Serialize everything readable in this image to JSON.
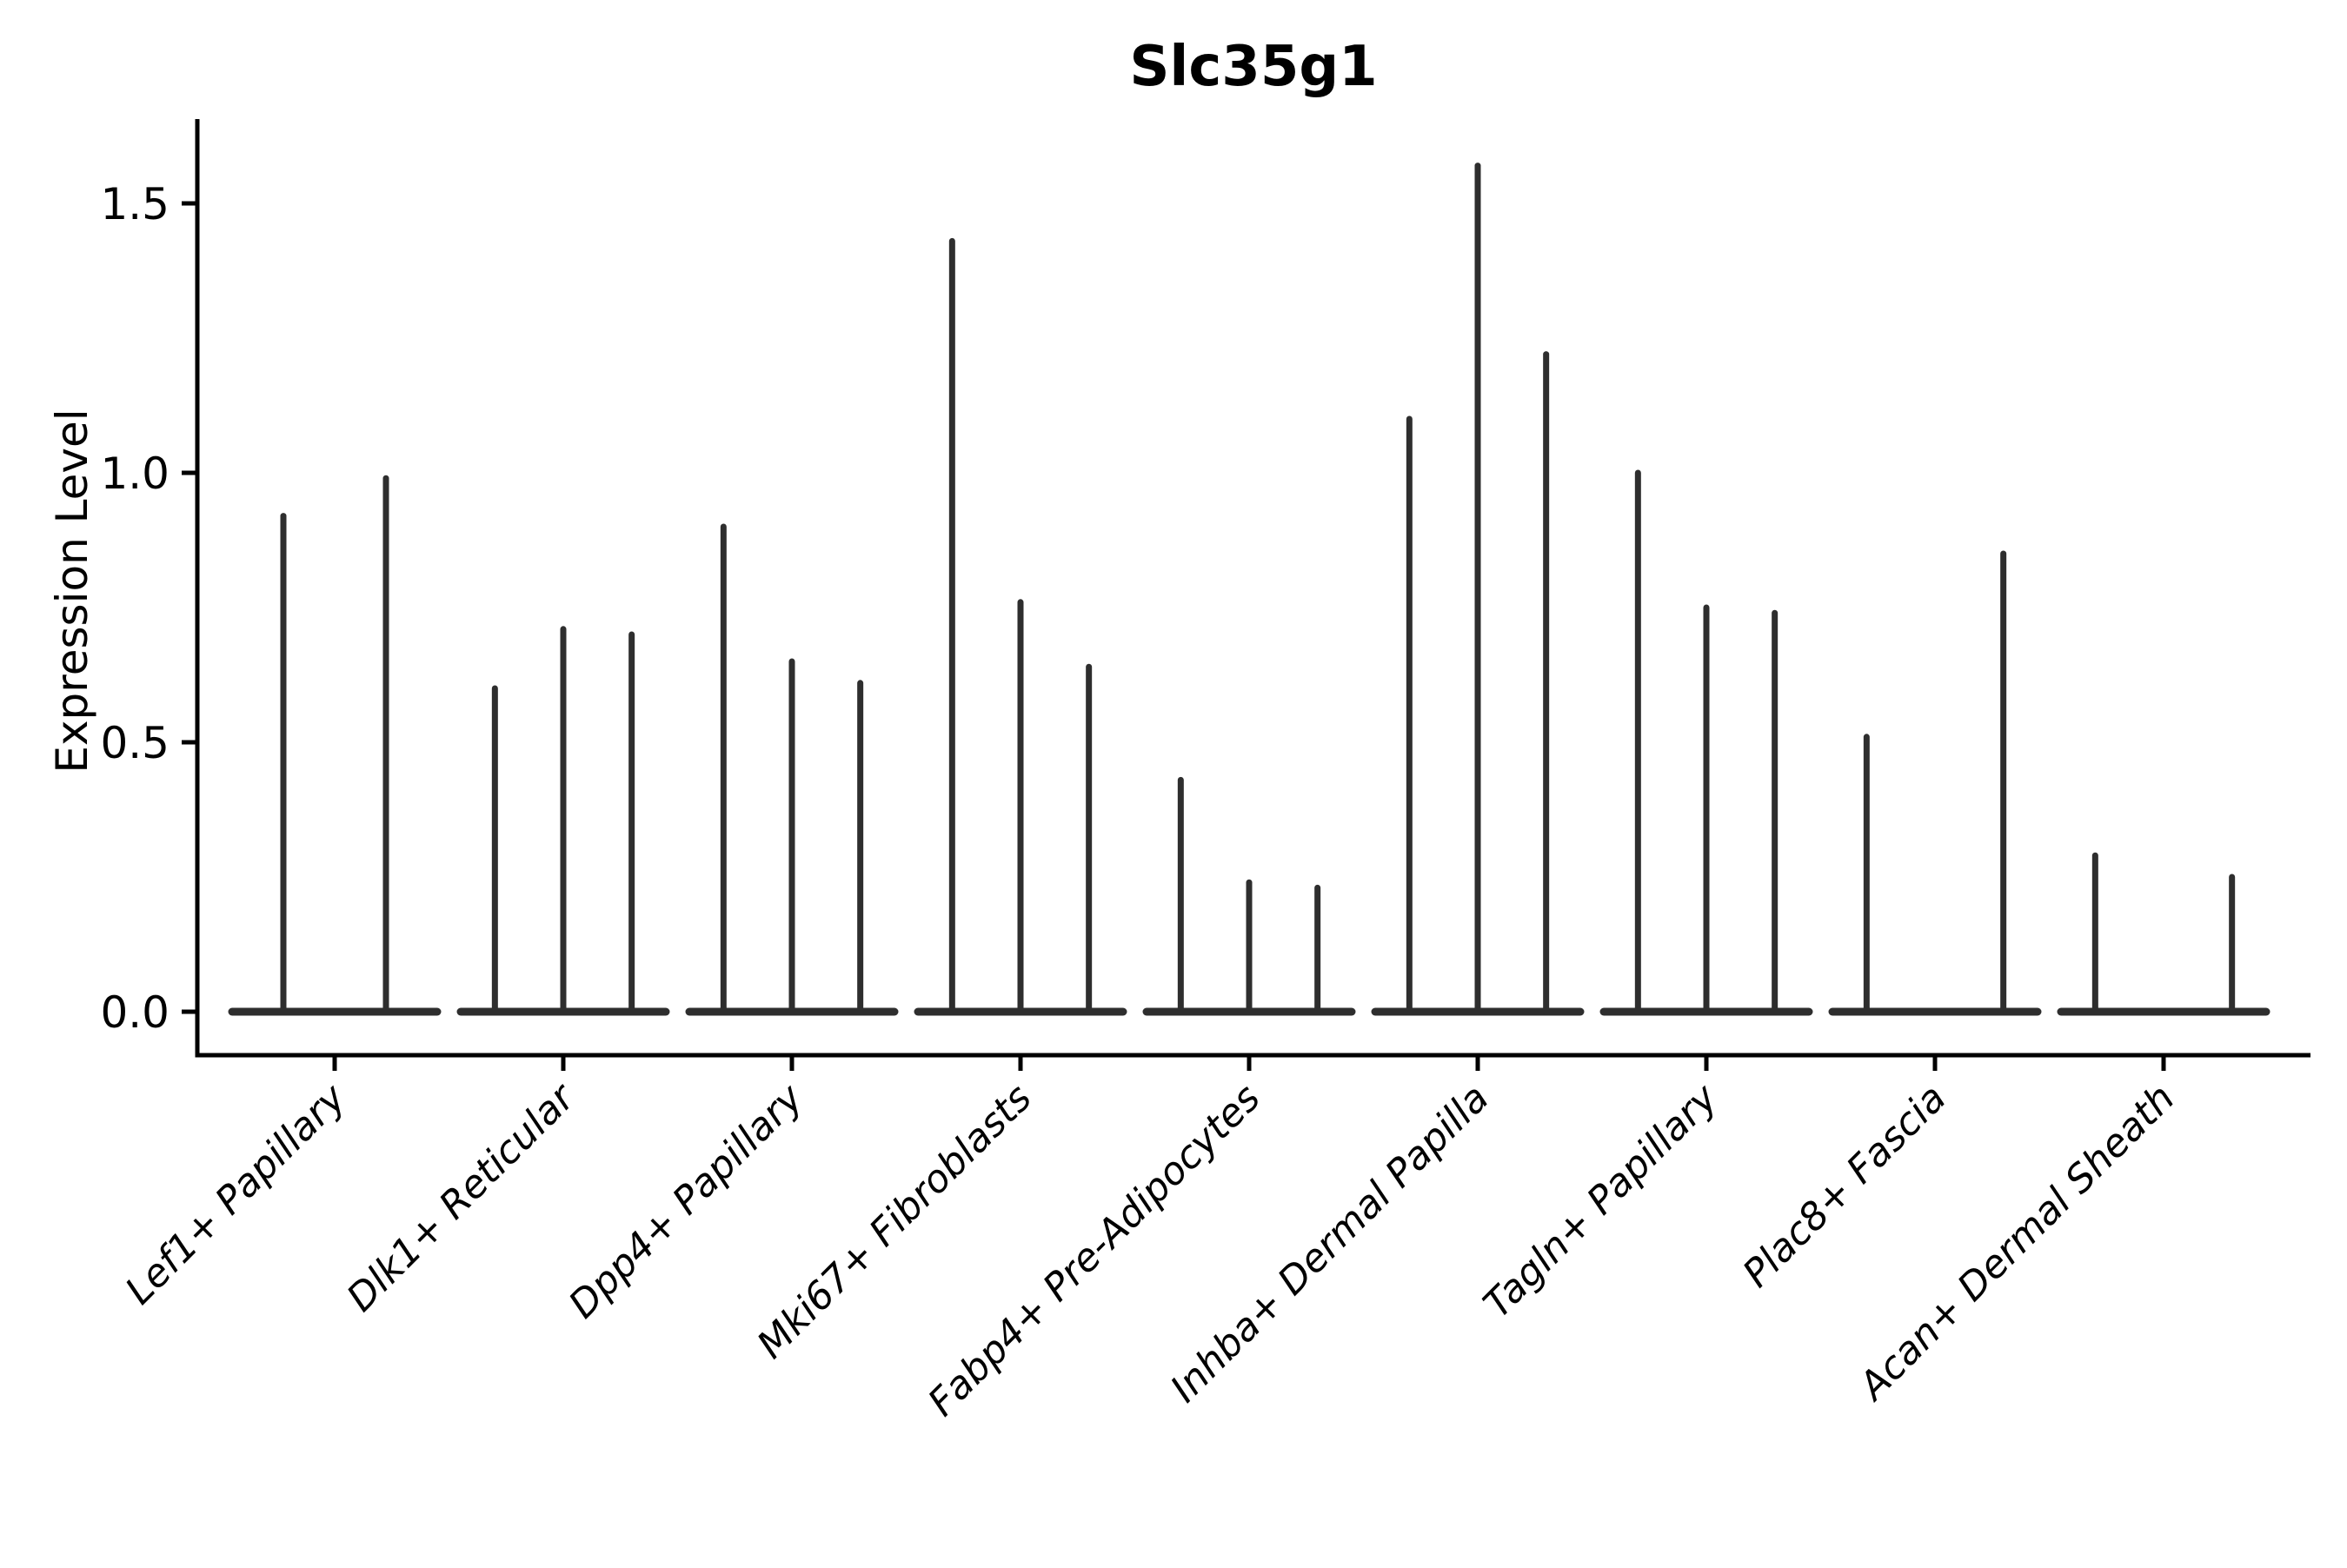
{
  "chart_data": {
    "type": "violin",
    "title": "Slc35g1",
    "ylabel": "Expression Level",
    "xlabel": "",
    "ytick_labels": [
      "0.0",
      "0.5",
      "1.0",
      "1.5"
    ],
    "ytick_values": [
      0.0,
      0.5,
      1.0,
      1.5
    ],
    "ylim": [
      0,
      1.65
    ],
    "grid": false,
    "legend": "none",
    "colors": {
      "violin": "#2e2e2e",
      "axis": "#000000",
      "background": "#ffffff"
    },
    "categories": [
      "Lef1+ Papillary",
      "Dlk1+ Reticular",
      "Dpp4+ Papillary",
      "Mki67+ Fibroblasts",
      "Fabp4+ Pre-Adipocytes",
      "Inhba+ Dermal Papilla",
      "Tagln+ Papillary",
      "Plac8+ Fascia",
      "Acan+ Dermal Sheath"
    ],
    "violin_peaks": [
      [
        0.92,
        0.99
      ],
      [
        0.6,
        0.71,
        0.7
      ],
      [
        0.9,
        0.65,
        0.61
      ],
      [
        1.43,
        0.76,
        0.64
      ],
      [
        0.43,
        0.24,
        0.23
      ],
      [
        1.1,
        1.57,
        1.22
      ],
      [
        1.0,
        0.75,
        0.74
      ],
      [
        0.51,
        0.0,
        0.85
      ],
      [
        0.29,
        0.0,
        0.25
      ]
    ]
  }
}
